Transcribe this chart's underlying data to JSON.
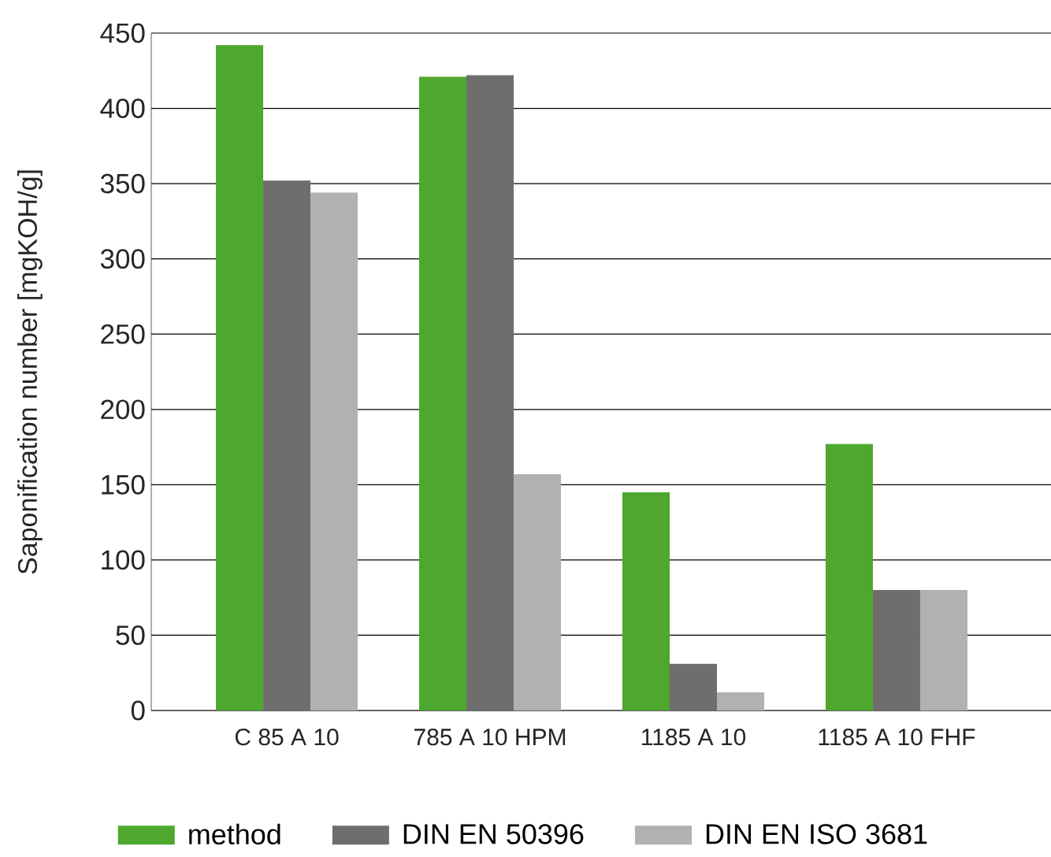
{
  "chart_data": {
    "type": "bar",
    "ylabel": "Saponification number [mgKOH/g]",
    "categories": [
      "C 85 A 10",
      "785 A 10 HPM",
      "1185 A 10",
      "1185 A 10 FHF"
    ],
    "series": [
      {
        "name": "method",
        "color": "#4ea72e",
        "values": [
          442,
          421,
          145,
          177
        ]
      },
      {
        "name": "DIN EN 50396",
        "color": "#6e6e6e",
        "values": [
          352,
          422,
          31,
          80
        ]
      },
      {
        "name": "DIN EN ISO 3681",
        "color": "#b1b1b1",
        "values": [
          344,
          157,
          12,
          80
        ]
      }
    ],
    "ylim": [
      0,
      450
    ],
    "yticks": [
      0,
      50,
      100,
      150,
      200,
      250,
      300,
      350,
      400,
      450
    ],
    "grid": "y",
    "legend": "bottom"
  }
}
